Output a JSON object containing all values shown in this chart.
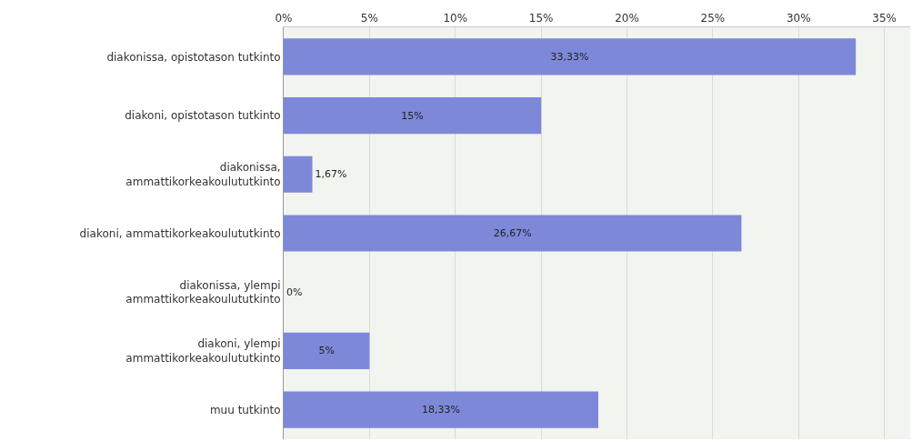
{
  "chart_data": {
    "type": "bar",
    "orientation": "horizontal",
    "categories": [
      "diakonissa, opistotason tutkinto",
      "diakoni, opistotason tutkinto",
      "diakonissa,\nammattikorkeakoulututkinto",
      "diakoni, ammattikorkeakoulututkinto",
      "diakonissa, ylempi\nammattikorkeakoulututkinto",
      "diakoni, ylempi\nammattikorkeakoulututkinto",
      "muu tutkinto"
    ],
    "values": [
      33.33,
      15,
      1.67,
      26.67,
      0,
      5,
      18.33
    ],
    "value_labels": [
      "33,33%",
      "15%",
      "1,67%",
      "26,67%",
      "0%",
      "5%",
      "18,33%"
    ],
    "color": "#7d88d8",
    "xlim": [
      0,
      36.5
    ],
    "xticks": [
      {
        "value": 0,
        "label": "0%"
      },
      {
        "value": 5,
        "label": "5%"
      },
      {
        "value": 10,
        "label": "10%"
      },
      {
        "value": 15,
        "label": "15%"
      },
      {
        "value": 20,
        "label": "20%"
      },
      {
        "value": 25,
        "label": "25%"
      },
      {
        "value": 30,
        "label": "30%"
      },
      {
        "value": 35,
        "label": "35%"
      }
    ],
    "grid": "x",
    "legend": false
  }
}
